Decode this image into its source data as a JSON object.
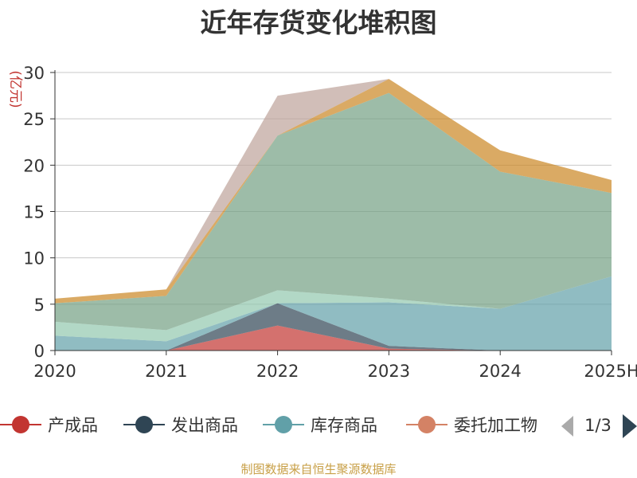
{
  "chart_data": {
    "type": "area",
    "title": "近年存货变化堆积图",
    "ylabel": "(亿元)",
    "categories": [
      "2020",
      "2021",
      "2022",
      "2023",
      "2024",
      "2025H"
    ],
    "ylim": [
      0,
      30
    ],
    "yticks": [
      0,
      5,
      10,
      15,
      20,
      25,
      30
    ],
    "stacked": true,
    "grid": true,
    "series": [
      {
        "name": "产成品",
        "color": "#c23531",
        "values": [
          0.0,
          0.0,
          2.7,
          0.2,
          0.0,
          0.0
        ]
      },
      {
        "name": "发出商品",
        "color": "#2f4554",
        "values": [
          0.0,
          0.0,
          2.4,
          0.3,
          0.0,
          0.0
        ]
      },
      {
        "name": "库存商品",
        "color": "#61a0a8",
        "values": [
          1.6,
          1.0,
          0.0,
          4.7,
          4.5,
          8.0
        ]
      },
      {
        "name": "委托加工物资",
        "color": "#d48265",
        "values": [
          0.0,
          0.0,
          0.0,
          0.0,
          0.0,
          0.0
        ]
      },
      {
        "name": "",
        "color": "#91c7ae",
        "values": [
          1.5,
          1.2,
          1.4,
          0.4,
          0.0,
          0.0
        ]
      },
      {
        "name": "",
        "color": "#749f83",
        "values": [
          2.0,
          3.7,
          16.7,
          22.2,
          14.8,
          9.0
        ]
      },
      {
        "name": "",
        "color": "#ca8622",
        "values": [
          0.5,
          0.7,
          0.0,
          1.5,
          2.3,
          1.4
        ]
      },
      {
        "name": "",
        "color": "#bda29a",
        "values": [
          0.0,
          0.0,
          4.3,
          0.0,
          0.0,
          0.0
        ]
      }
    ],
    "legend": {
      "position": "bottom",
      "visible_items": [
        "产成品",
        "发出商品",
        "库存商品",
        "委托加工物"
      ],
      "page": "1/3"
    }
  },
  "footer": "制图数据来自恒生聚源数据库"
}
